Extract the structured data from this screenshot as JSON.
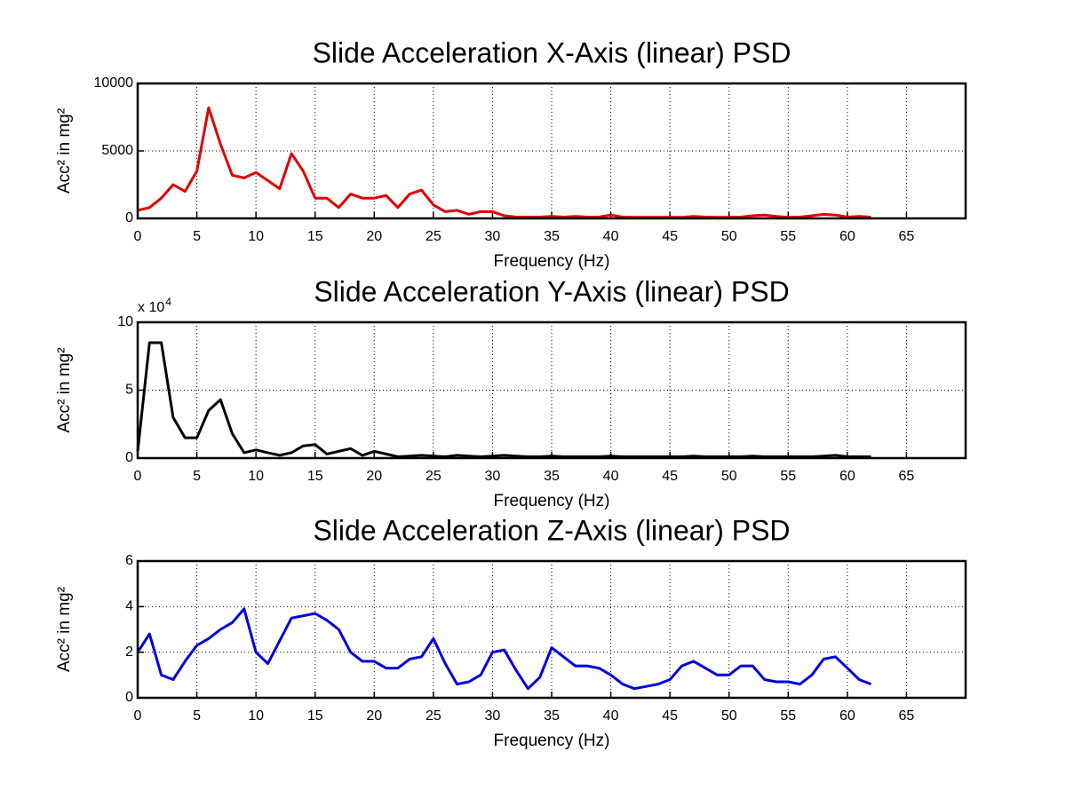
{
  "chart_data": [
    {
      "type": "line",
      "title": "Slide Acceleration X-Axis (linear) PSD",
      "xlabel": "Frequency (Hz)",
      "ylabel": "Acc² in mg²",
      "xlim": [
        0,
        70
      ],
      "xticks": [
        0,
        5,
        10,
        15,
        20,
        25,
        30,
        35,
        40,
        45,
        50,
        55,
        60,
        65
      ],
      "ylim": [
        0,
        10000
      ],
      "yticks": [
        0,
        5000,
        10000
      ],
      "grid": true,
      "color": "#e00000",
      "x": [
        0,
        1,
        2,
        3,
        4,
        5,
        6,
        7,
        8,
        9,
        10,
        11,
        12,
        13,
        14,
        15,
        16,
        17,
        18,
        19,
        20,
        21,
        22,
        23,
        24,
        25,
        26,
        27,
        28,
        29,
        30,
        31,
        32,
        33,
        34,
        35,
        36,
        37,
        38,
        39,
        40,
        41,
        42,
        43,
        44,
        45,
        46,
        47,
        48,
        49,
        50,
        51,
        52,
        53,
        54,
        55,
        56,
        57,
        58,
        59,
        60,
        61,
        62
      ],
      "values": [
        600,
        800,
        1500,
        2500,
        2000,
        3500,
        8200,
        5500,
        3200,
        3000,
        3400,
        2800,
        2200,
        4800,
        3500,
        1500,
        1500,
        800,
        1800,
        1500,
        1500,
        1700,
        800,
        1800,
        2100,
        1000,
        500,
        600,
        300,
        500,
        500,
        200,
        100,
        100,
        100,
        150,
        100,
        150,
        100,
        100,
        250,
        100,
        80,
        80,
        80,
        80,
        80,
        150,
        100,
        80,
        80,
        100,
        200,
        250,
        150,
        80,
        100,
        200,
        300,
        250,
        100,
        150,
        100
      ]
    },
    {
      "type": "line",
      "title": "Slide Acceleration Y-Axis (linear) PSD",
      "xlabel": "Frequency (Hz)",
      "ylabel": "Acc² in mg²",
      "y_multiplier": {
        "base": "x 10",
        "exponent": "4"
      },
      "xlim": [
        0,
        70
      ],
      "xticks": [
        0,
        5,
        10,
        15,
        20,
        25,
        30,
        35,
        40,
        45,
        50,
        55,
        60,
        65
      ],
      "ylim": [
        0,
        100000
      ],
      "yticks": [
        {
          "value": 0,
          "label": "0"
        },
        {
          "value": 50000,
          "label": "5"
        },
        {
          "value": 100000,
          "label": "10"
        }
      ],
      "grid": true,
      "color": "#000000",
      "x": [
        0,
        1,
        2,
        3,
        4,
        5,
        6,
        7,
        8,
        9,
        10,
        11,
        12,
        13,
        14,
        15,
        16,
        17,
        18,
        19,
        20,
        21,
        22,
        23,
        24,
        25,
        26,
        27,
        28,
        29,
        30,
        31,
        32,
        33,
        34,
        35,
        36,
        37,
        38,
        39,
        40,
        41,
        42,
        43,
        44,
        45,
        46,
        47,
        48,
        49,
        50,
        51,
        52,
        53,
        54,
        55,
        56,
        57,
        58,
        59,
        60,
        61,
        62
      ],
      "values": [
        5000,
        85000,
        85000,
        30000,
        15000,
        15000,
        35000,
        43000,
        18000,
        4000,
        6000,
        4000,
        2000,
        4000,
        9000,
        10000,
        3000,
        5000,
        7000,
        2000,
        5000,
        3000,
        1000,
        1500,
        2000,
        1500,
        1000,
        2000,
        1500,
        1000,
        1500,
        2000,
        1500,
        1000,
        1000,
        1500,
        1000,
        1000,
        1000,
        1000,
        1500,
        1000,
        1000,
        1000,
        1000,
        1000,
        1000,
        1500,
        1000,
        1000,
        1000,
        1000,
        1500,
        1000,
        1000,
        1000,
        1000,
        1000,
        1500,
        2000,
        1000,
        1000,
        1000
      ]
    },
    {
      "type": "line",
      "title": "Slide Acceleration Z-Axis (linear) PSD",
      "xlabel": "Frequency (Hz)",
      "ylabel": "Acc² in mg²",
      "xlim": [
        0,
        70
      ],
      "xticks": [
        0,
        5,
        10,
        15,
        20,
        25,
        30,
        35,
        40,
        45,
        50,
        55,
        60,
        65
      ],
      "ylim": [
        0,
        6
      ],
      "yticks": [
        0,
        2,
        4,
        6
      ],
      "grid": true,
      "color": "#0000dd",
      "x": [
        0,
        1,
        2,
        3,
        4,
        5,
        6,
        7,
        8,
        9,
        10,
        11,
        12,
        13,
        14,
        15,
        16,
        17,
        18,
        19,
        20,
        21,
        22,
        23,
        24,
        25,
        26,
        27,
        28,
        29,
        30,
        31,
        32,
        33,
        34,
        35,
        36,
        37,
        38,
        39,
        40,
        41,
        42,
        43,
        44,
        45,
        46,
        47,
        48,
        49,
        50,
        51,
        52,
        53,
        54,
        55,
        56,
        57,
        58,
        59,
        60,
        61,
        62
      ],
      "values": [
        2.0,
        2.8,
        1.0,
        0.8,
        1.6,
        2.3,
        2.6,
        3.0,
        3.3,
        3.9,
        2.0,
        1.5,
        2.5,
        3.5,
        3.6,
        3.7,
        3.4,
        3.0,
        2.0,
        1.6,
        1.6,
        1.3,
        1.3,
        1.7,
        1.8,
        2.6,
        1.5,
        0.6,
        0.7,
        1.0,
        2.0,
        2.1,
        1.2,
        0.4,
        0.9,
        2.2,
        1.8,
        1.4,
        1.4,
        1.3,
        1.0,
        0.6,
        0.4,
        0.5,
        0.6,
        0.8,
        1.4,
        1.6,
        1.3,
        1.0,
        1.0,
        1.4,
        1.4,
        0.8,
        0.7,
        0.7,
        0.6,
        1.0,
        1.7,
        1.8,
        1.3,
        0.8,
        0.6
      ]
    }
  ]
}
